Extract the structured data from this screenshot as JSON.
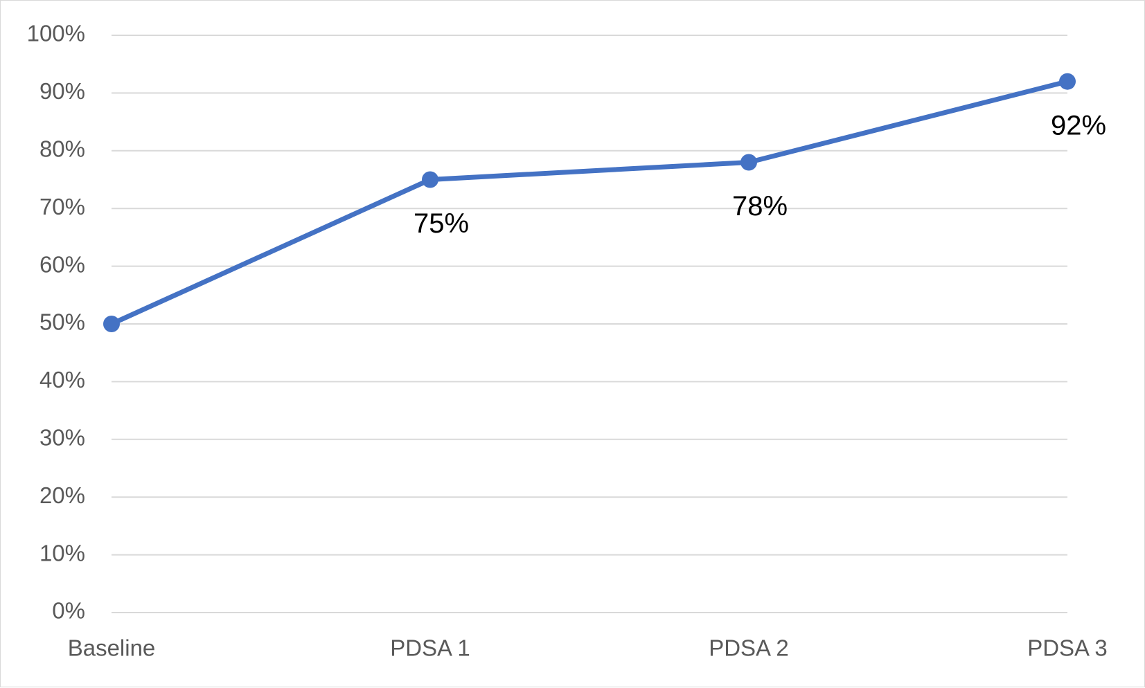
{
  "chart_data": {
    "type": "line",
    "categories": [
      "Baseline",
      "PDSA 1",
      "PDSA 2",
      "PDSA 3"
    ],
    "series": [
      {
        "values": [
          0.5,
          0.75,
          0.78,
          0.92
        ],
        "color": "#4472c4",
        "data_labels": [
          "",
          "75%",
          "78%",
          "92%"
        ]
      }
    ],
    "title": "",
    "xlabel": "",
    "ylabel": "",
    "ylim": [
      0,
      1
    ],
    "y_ticks": [
      "0%",
      "10%",
      "20%",
      "30%",
      "40%",
      "50%",
      "60%",
      "70%",
      "80%",
      "90%",
      "100%"
    ],
    "grid": true,
    "legend": "none"
  }
}
